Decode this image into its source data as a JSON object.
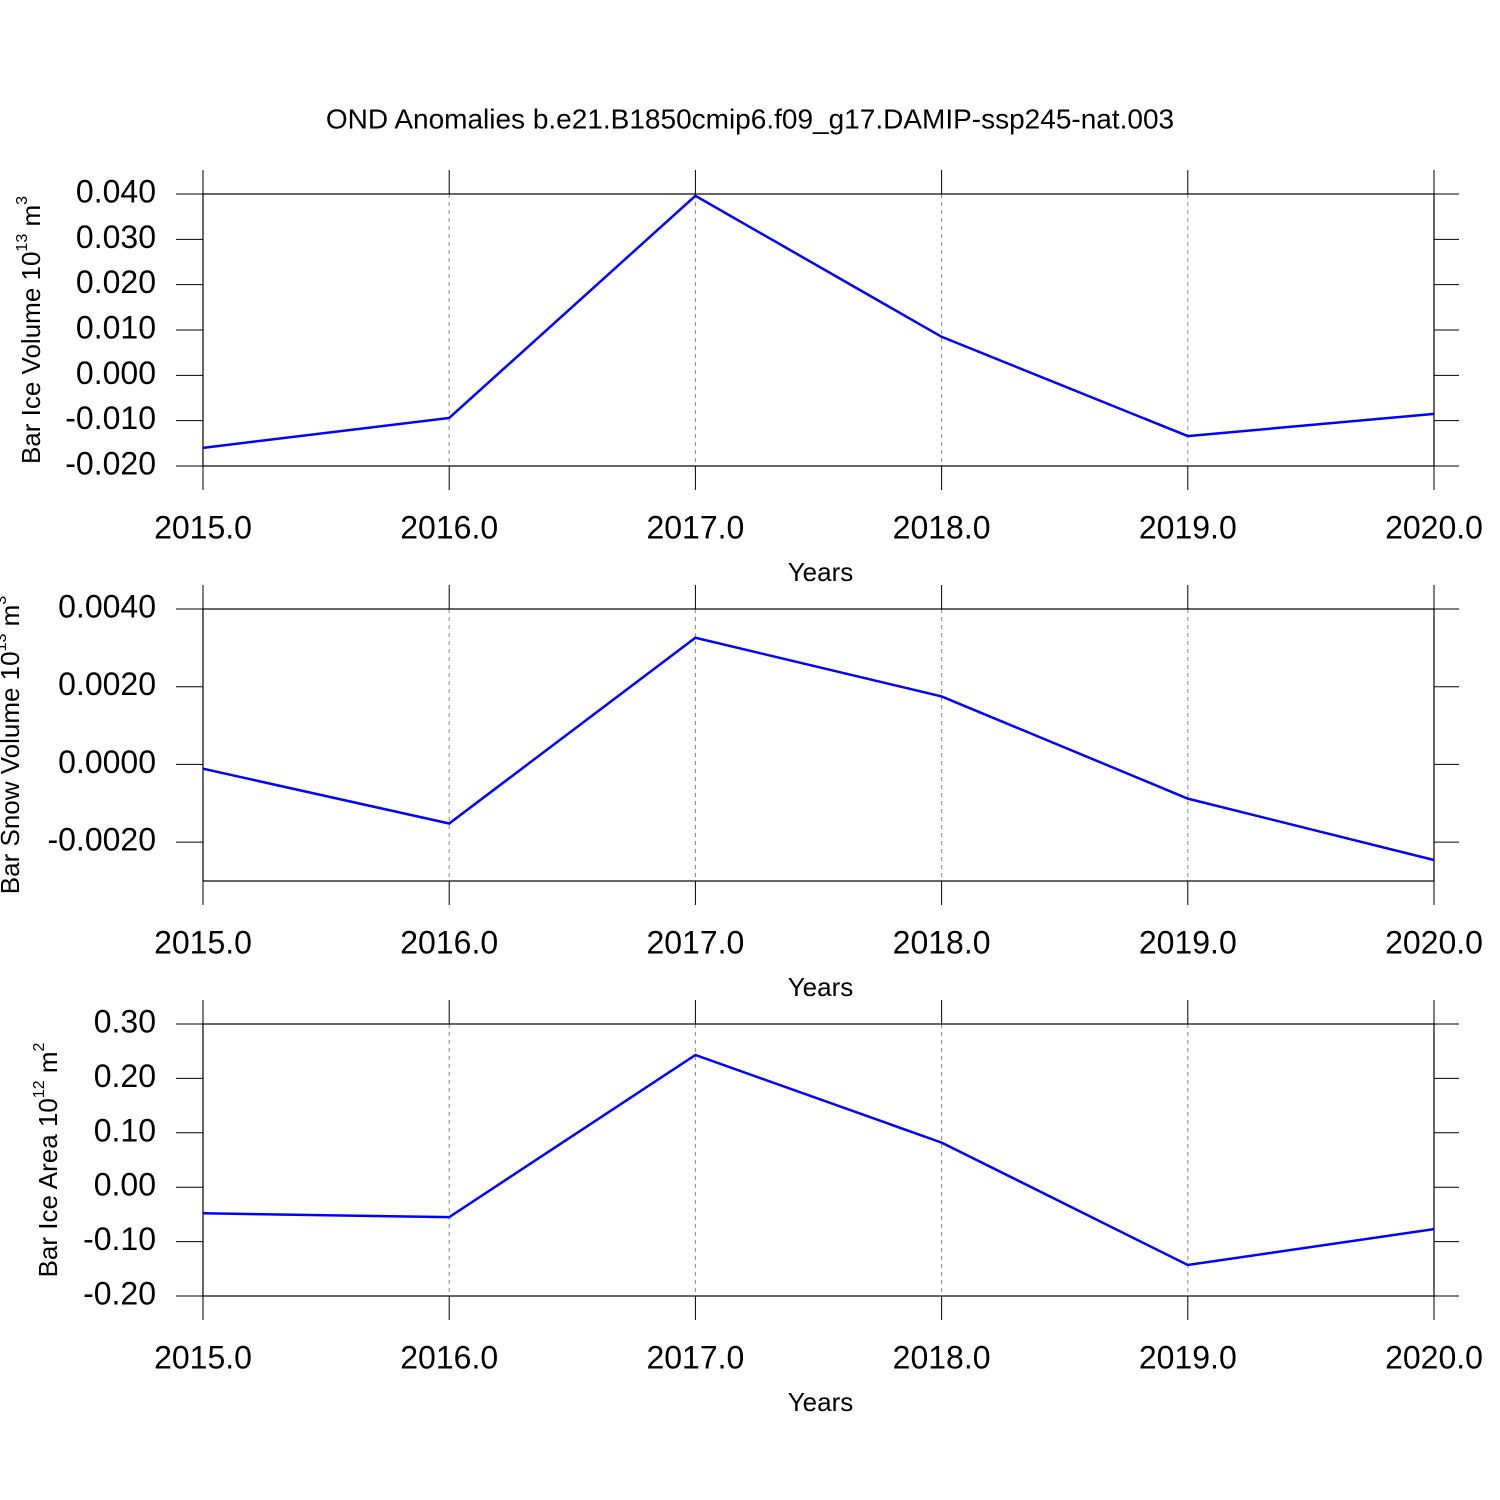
{
  "chart_data": [
    {
      "type": "line",
      "title": "OND Anomalies b.e21.B1850cmip6.f09_g17.DAMIP-ssp245-nat.003",
      "ylabel": [
        "Bar Ice Volume 10",
        "13",
        " m",
        "3"
      ],
      "xlabel": "Years",
      "x": [
        2015,
        2016,
        2017,
        2018,
        2019,
        2020
      ],
      "series": [
        {
          "color": "#0000ff",
          "values": [
            -0.016,
            -0.0094,
            0.0396,
            0.0085,
            -0.0134,
            -0.0085
          ]
        }
      ],
      "xlim": [
        2015,
        2020
      ],
      "ylim": [
        -0.02,
        0.04
      ],
      "xticks": [
        {
          "value": 2015,
          "label": "2015.0"
        },
        {
          "value": 2016,
          "label": "2016.0"
        },
        {
          "value": 2017,
          "label": "2017.0"
        },
        {
          "value": 2018,
          "label": "2018.0"
        },
        {
          "value": 2019,
          "label": "2019.0"
        },
        {
          "value": 2020,
          "label": "2020.0"
        }
      ],
      "yticks": [
        {
          "value": -0.02,
          "label": "-0.020"
        },
        {
          "value": -0.01,
          "label": "-0.010"
        },
        {
          "value": 0,
          "label": "0.000"
        },
        {
          "value": 0.01,
          "label": "0.010"
        },
        {
          "value": 0.02,
          "label": "0.020"
        },
        {
          "value": 0.03,
          "label": "0.030"
        },
        {
          "value": 0.04,
          "label": "0.040"
        }
      ],
      "grid": "x"
    },
    {
      "type": "line",
      "ylabel": [
        "Bar Snow Volume 10",
        "13",
        " m",
        "3"
      ],
      "xlabel": "Years",
      "x": [
        2015,
        2016,
        2017,
        2018,
        2019,
        2020
      ],
      "series": [
        {
          "color": "#0000ff",
          "values": [
            -0.00011,
            -0.00152,
            0.00326,
            0.00175,
            -0.00088,
            -0.00246
          ]
        }
      ],
      "xlim": [
        2015,
        2020
      ],
      "ylim": [
        -0.003,
        0.004
      ],
      "xticks": [
        {
          "value": 2015,
          "label": "2015.0"
        },
        {
          "value": 2016,
          "label": "2016.0"
        },
        {
          "value": 2017,
          "label": "2017.0"
        },
        {
          "value": 2018,
          "label": "2018.0"
        },
        {
          "value": 2019,
          "label": "2019.0"
        },
        {
          "value": 2020,
          "label": "2020.0"
        }
      ],
      "yticks": [
        {
          "value": -0.002,
          "label": "-0.0020"
        },
        {
          "value": 0,
          "label": "0.0000"
        },
        {
          "value": 0.002,
          "label": "0.0020"
        },
        {
          "value": 0.004,
          "label": "0.0040"
        }
      ],
      "grid": "x"
    },
    {
      "type": "line",
      "ylabel": [
        "Bar Ice Area 10",
        "12",
        " m",
        "2"
      ],
      "xlabel": "Years",
      "x": [
        2015,
        2016,
        2017,
        2018,
        2019,
        2020
      ],
      "series": [
        {
          "color": "#0000ff",
          "values": [
            -0.048,
            -0.055,
            0.243,
            0.082,
            -0.143,
            -0.077
          ]
        }
      ],
      "xlim": [
        2015,
        2020
      ],
      "ylim": [
        -0.2,
        0.3
      ],
      "xticks": [
        {
          "value": 2015,
          "label": "2015.0"
        },
        {
          "value": 2016,
          "label": "2016.0"
        },
        {
          "value": 2017,
          "label": "2017.0"
        },
        {
          "value": 2018,
          "label": "2018.0"
        },
        {
          "value": 2019,
          "label": "2019.0"
        },
        {
          "value": 2020,
          "label": "2020.0"
        }
      ],
      "yticks": [
        {
          "value": -0.2,
          "label": "-0.20"
        },
        {
          "value": -0.1,
          "label": "-0.10"
        },
        {
          "value": 0,
          "label": "0.00"
        },
        {
          "value": 0.1,
          "label": "0.10"
        },
        {
          "value": 0.2,
          "label": "0.20"
        },
        {
          "value": 0.3,
          "label": "0.30"
        }
      ],
      "grid": "x"
    }
  ]
}
